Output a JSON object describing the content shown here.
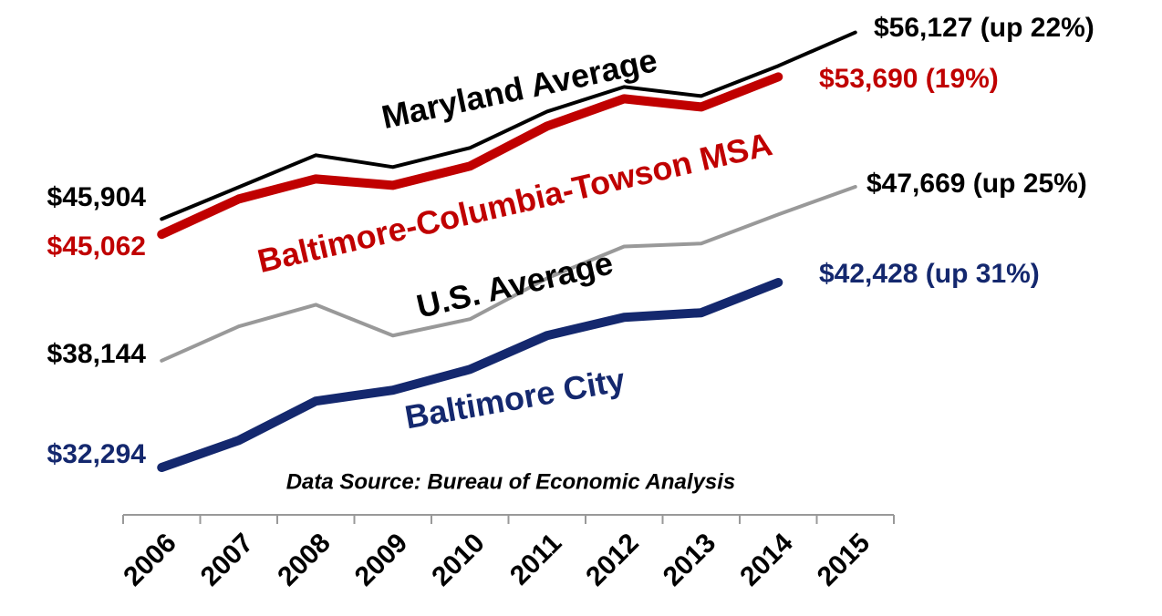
{
  "chart_data": {
    "type": "line",
    "categories": [
      "2006",
      "2007",
      "2008",
      "2009",
      "2010",
      "2011",
      "2012",
      "2013",
      "2014",
      "2015"
    ],
    "ylim": [
      29700,
      57900
    ],
    "series": [
      {
        "name": "Maryland  Average",
        "color": "#000000",
        "values": [
          45904,
          47650,
          49400,
          48750,
          49800,
          51790,
          53140,
          52640,
          54290,
          56127
        ],
        "value_labels": [
          "$45,904",
          null,
          null,
          null,
          null,
          null,
          null,
          null,
          null,
          "$56,127 (up 22%)"
        ]
      },
      {
        "name": "Baltimore-Columbia-Towson MSA",
        "color": "#c00000",
        "values": [
          45062,
          47000,
          48100,
          47750,
          48800,
          50990,
          52490,
          52040,
          53690,
          null
        ],
        "value_labels": [
          "$45,062",
          null,
          null,
          null,
          null,
          null,
          null,
          null,
          "$53,690 (19%)",
          null
        ]
      },
      {
        "name": "U.S. Average",
        "color": "#999999",
        "label_color": "#000000",
        "values": [
          38144,
          40020,
          41210,
          39520,
          40420,
          42660,
          44400,
          44560,
          46150,
          47669
        ],
        "value_labels": [
          "$38,144",
          null,
          null,
          null,
          null,
          null,
          null,
          null,
          null,
          "$47,669 (up 25%)"
        ]
      },
      {
        "name": "Baltimore City",
        "color": "#14286e",
        "values": [
          32294,
          33780,
          35930,
          36530,
          37670,
          39520,
          40520,
          40770,
          42428,
          null
        ],
        "value_labels": [
          "$32,294",
          null,
          null,
          null,
          null,
          null,
          null,
          null,
          "$42,428 (up 31%)",
          null
        ]
      }
    ],
    "annotations": [
      "Data Source: Bureau of Economic Analysis"
    ]
  }
}
